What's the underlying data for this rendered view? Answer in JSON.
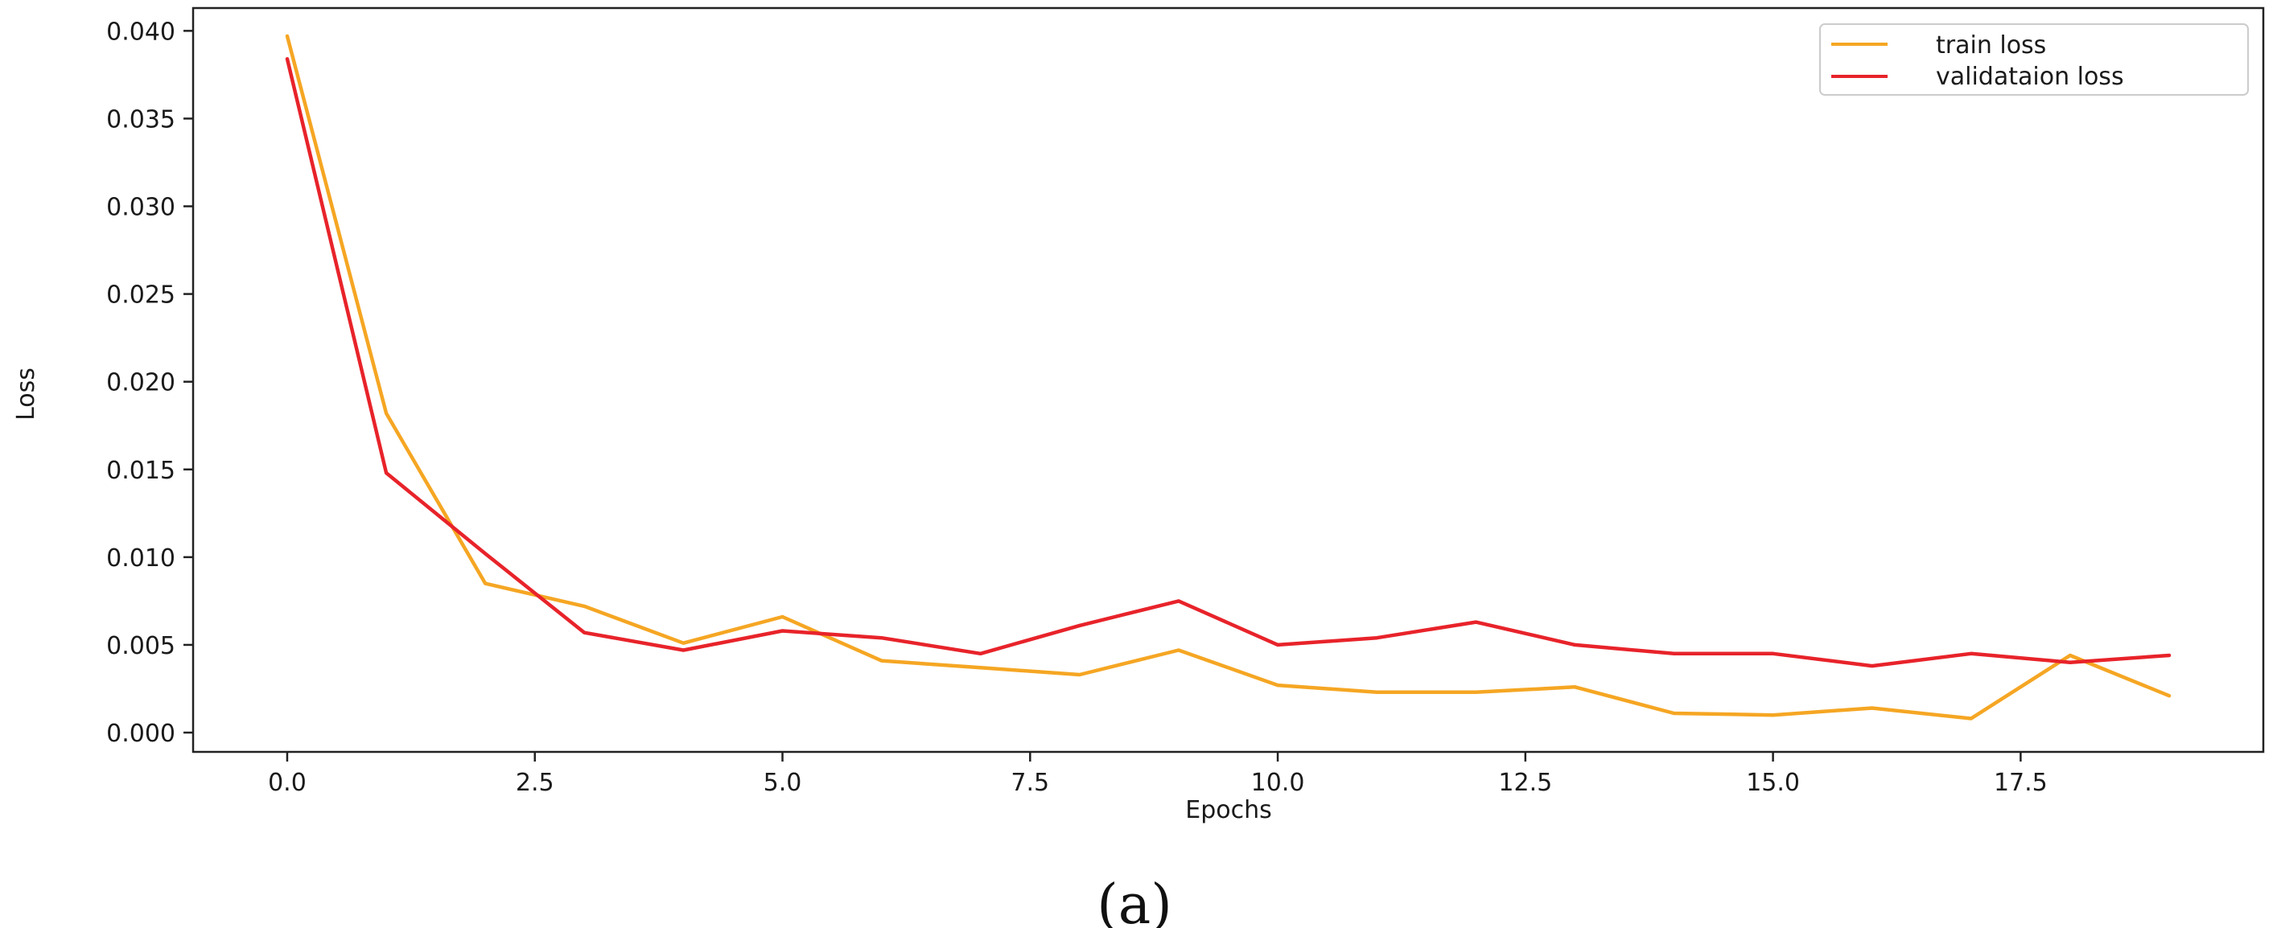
{
  "chart_data": {
    "type": "line",
    "xlabel": "Epochs",
    "ylabel": "Loss",
    "xlim": [
      -0.95,
      19.95
    ],
    "ylim": [
      -0.0011,
      0.0413
    ],
    "xticks": [
      0,
      2.5,
      5,
      7.5,
      10,
      12.5,
      15,
      17.5
    ],
    "xtick_labels": [
      "0.0",
      "2.5",
      "5.0",
      "7.5",
      "10.0",
      "12.5",
      "15.0",
      "17.5"
    ],
    "yticks": [
      0,
      0.005,
      0.01,
      0.015,
      0.02,
      0.025,
      0.03,
      0.035,
      0.04
    ],
    "ytick_labels": [
      "0.000",
      "0.005",
      "0.010",
      "0.015",
      "0.020",
      "0.025",
      "0.030",
      "0.035",
      "0.040"
    ],
    "grid": false,
    "legend_position": "top-right",
    "x": [
      0,
      1,
      2,
      3,
      4,
      5,
      6,
      7,
      8,
      9,
      10,
      11,
      12,
      13,
      14,
      15,
      16,
      17,
      18,
      19
    ],
    "series": [
      {
        "name": "train loss",
        "color": "#f5a623",
        "values": [
          0.0397,
          0.0182,
          0.0085,
          0.0072,
          0.0051,
          0.0066,
          0.0041,
          0.0037,
          0.0033,
          0.0047,
          0.0027,
          0.0023,
          0.0023,
          0.0026,
          0.0011,
          0.001,
          0.0014,
          0.0008,
          0.0044,
          0.0021
        ]
      },
      {
        "name": "validataion loss",
        "color": "#e8232a",
        "values": [
          0.0384,
          0.0148,
          0.0102,
          0.0057,
          0.0047,
          0.0058,
          0.0054,
          0.0045,
          0.0061,
          0.0075,
          0.005,
          0.0054,
          0.0063,
          0.005,
          0.0045,
          0.0045,
          0.0038,
          0.0045,
          0.004,
          0.0044
        ]
      }
    ]
  },
  "caption": "(a)"
}
